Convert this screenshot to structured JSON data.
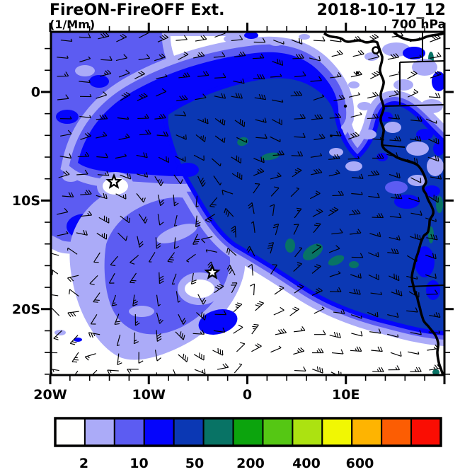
{
  "header": {
    "title": "FireON-FireOFF Ext.",
    "datetime": "2018-10-17_12",
    "units": "(1/Mm)",
    "level": "700 hPa"
  },
  "map": {
    "x_tick_labels": [
      "20W",
      "10W",
      "0",
      "10E"
    ],
    "y_tick_labels": [
      "0",
      "10S",
      "20S"
    ],
    "markers": [
      {
        "symbol": "star",
        "lon": "13.5W",
        "lat": "8.3S"
      },
      {
        "symbol": "star",
        "lon": "3.7W",
        "lat": "16.6S"
      }
    ]
  },
  "colorbar": {
    "labels": [
      "2",
      "10",
      "50",
      "200",
      "400",
      "600"
    ],
    "colors": [
      "#FFFFFE",
      "#ABABF8",
      "#5C5CF2",
      "#0505FC",
      "#0B38B4",
      "#087365",
      "#0CA40D",
      "#55C714",
      "#ACE211",
      "#F1F703",
      "#FEB401",
      "#FC5D03",
      "#FA0D03"
    ]
  },
  "chart_data": {
    "type": "heatmap",
    "title": "FireON-FireOFF Ext.",
    "valid_time": "2018-10-17_12",
    "pressure_level": "700 hPa",
    "units": "1/Mm",
    "x_ticks": [
      "20W",
      "10W",
      "0",
      "10E"
    ],
    "y_ticks": [
      "0",
      "10S",
      "20S"
    ],
    "x_minor_tick_interval_deg": 2,
    "y_minor_tick_interval_deg": 2,
    "colorbar_labels": [
      2,
      10,
      50,
      200,
      400,
      600
    ],
    "colorbar_colors": [
      "#FFFFFE",
      "#ABABF8",
      "#5C5CF2",
      "#0505FC",
      "#0B38B4",
      "#087365",
      "#0CA40D",
      "#55C714",
      "#ACE211",
      "#F1F703",
      "#FEB401",
      "#FC5D03",
      "#FA0D03"
    ],
    "legend_position": "bottom",
    "overlay": "700 hPa wind barbs",
    "markers": [
      {
        "symbol": "star",
        "lon": "13.5W",
        "lat": "8.3S"
      },
      {
        "symbol": "star",
        "lon": "3.7W",
        "lat": "16.6S"
      }
    ],
    "field_summary": "Aerosol extinction difference: broad 20-50 1/Mm maximum over the Gulf of Guinea / SE Atlantic reaching the African coast, with embedded 50-100 patches; 2-20 1/Mm band and cyclonic swirl to the southwest; near-zero values in the far southwest and over inland west Africa."
  }
}
